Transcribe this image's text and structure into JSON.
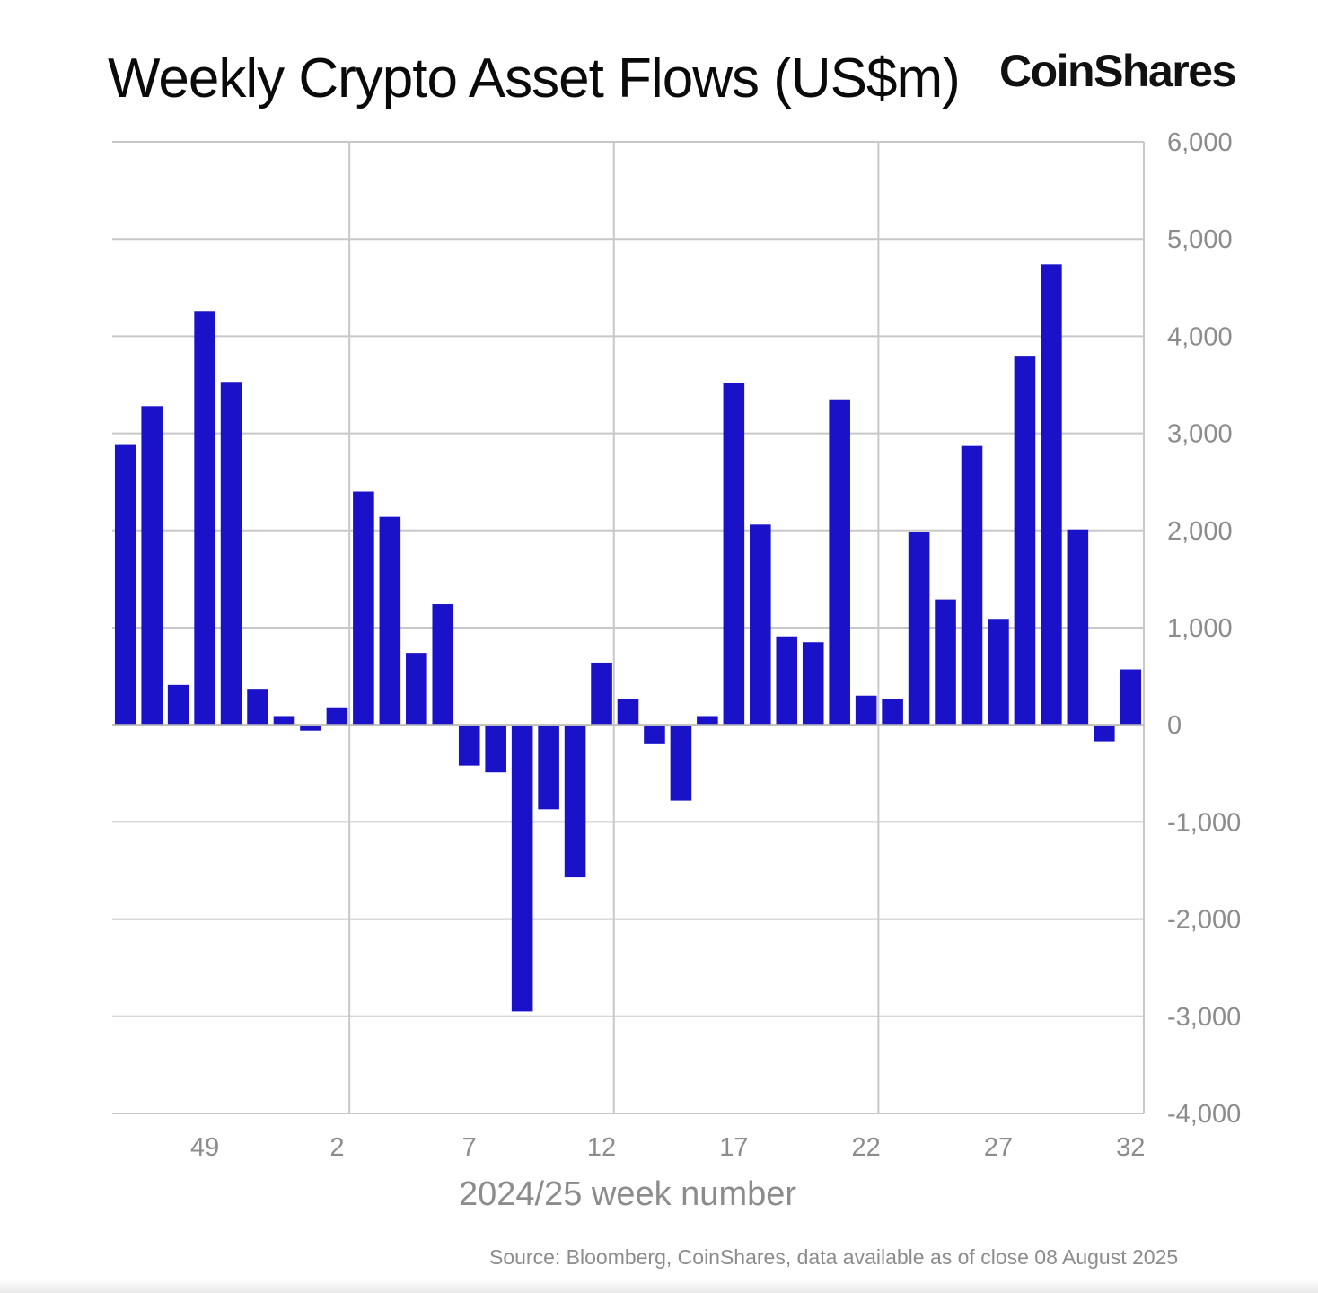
{
  "brand": "CoinShares",
  "source": "Source: Bloomberg, CoinShares, data available as of close 08 August 2025",
  "colors": {
    "bar": "#1a12c8",
    "grid": "#c8c8c8",
    "axis_text": "#8c8c8c"
  },
  "chart_data": {
    "type": "bar",
    "title": "Weekly Crypto Asset Flows (US$m)",
    "xlabel": "2024/25 week number",
    "ylabel": "",
    "ylim": [
      -4000,
      6000
    ],
    "y_ticks": [
      6000,
      5000,
      4000,
      3000,
      2000,
      1000,
      0,
      -1000,
      -2000,
      -3000,
      -4000
    ],
    "y_tick_labels": [
      "6,000",
      "5,000",
      "4,000",
      "3,000",
      "2,000",
      "1,000",
      "0",
      "-1,000",
      "-2,000",
      "-3,000",
      "-4,000"
    ],
    "y_axis_side": "right",
    "grid": true,
    "x_tick_labels": [
      {
        "label": "49",
        "index": 3
      },
      {
        "label": "2",
        "index": 8
      },
      {
        "label": "7",
        "index": 13
      },
      {
        "label": "12",
        "index": 18
      },
      {
        "label": "17",
        "index": 23
      },
      {
        "label": "22",
        "index": 28
      },
      {
        "label": "27",
        "index": 33
      },
      {
        "label": "32",
        "index": 38
      }
    ],
    "values": [
      2880,
      3280,
      410,
      4260,
      3530,
      370,
      90,
      -60,
      180,
      2400,
      2140,
      740,
      1240,
      -420,
      -490,
      -2950,
      -870,
      -1570,
      640,
      270,
      -200,
      -780,
      90,
      3520,
      2060,
      910,
      850,
      3350,
      300,
      270,
      1980,
      1290,
      2870,
      1090,
      3790,
      4740,
      2010,
      -170,
      570
    ]
  }
}
